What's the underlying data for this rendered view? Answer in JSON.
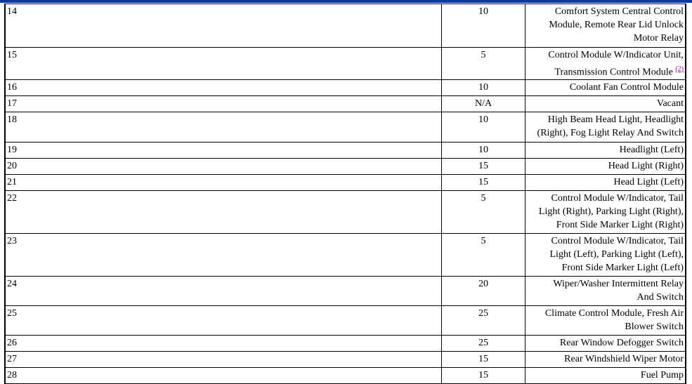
{
  "colors": {
    "top_bar": "#0b3a9c",
    "footnote_link": "#a0168a"
  },
  "rows": [
    {
      "fuse": "14",
      "amps": "10",
      "lines": [
        "Comfort System Central Control",
        "Module, Remote Rear Lid Unlock",
        "Motor Relay"
      ]
    },
    {
      "fuse": "15",
      "amps": "5",
      "lines": [
        "Control Module W/Indicator Unit,",
        "Transmission Control Module"
      ],
      "footnote": "(2)"
    },
    {
      "fuse": "16",
      "amps": "10",
      "lines": [
        "Coolant Fan Control Module"
      ]
    },
    {
      "fuse": "17",
      "amps": "N/A",
      "lines": [
        "Vacant"
      ]
    },
    {
      "fuse": "18",
      "amps": "10",
      "lines": [
        "High Beam Head Light, Headlight",
        "(Right), Fog Light Relay And Switch"
      ]
    },
    {
      "fuse": "19",
      "amps": "10",
      "lines": [
        "Headlight (Left)"
      ]
    },
    {
      "fuse": "20",
      "amps": "15",
      "lines": [
        "Head Light (Right)"
      ]
    },
    {
      "fuse": "21",
      "amps": "15",
      "lines": [
        "Head Light (Left)"
      ]
    },
    {
      "fuse": "22",
      "amps": "5",
      "lines": [
        "Control Module W/Indicator, Tail",
        "Light (Right), Parking Light (Right),",
        "Front Side Marker Light (Right)"
      ]
    },
    {
      "fuse": "23",
      "amps": "5",
      "lines": [
        "Control Module W/Indicator, Tail",
        "Light (Left), Parking Light (Left),",
        "Front Side Marker Light (Left)"
      ]
    },
    {
      "fuse": "24",
      "amps": "20",
      "lines": [
        "Wiper/Washer Intermittent Relay",
        "And Switch"
      ]
    },
    {
      "fuse": "25",
      "amps": "25",
      "lines": [
        "Climate Control Module, Fresh Air",
        "Blower Switch"
      ]
    },
    {
      "fuse": "26",
      "amps": "25",
      "lines": [
        "Rear Window Defogger Switch"
      ]
    },
    {
      "fuse": "27",
      "amps": "15",
      "lines": [
        "Rear Windshield Wiper Motor"
      ]
    },
    {
      "fuse": "28",
      "amps": "15",
      "lines": [
        "Fuel Pump"
      ]
    }
  ]
}
